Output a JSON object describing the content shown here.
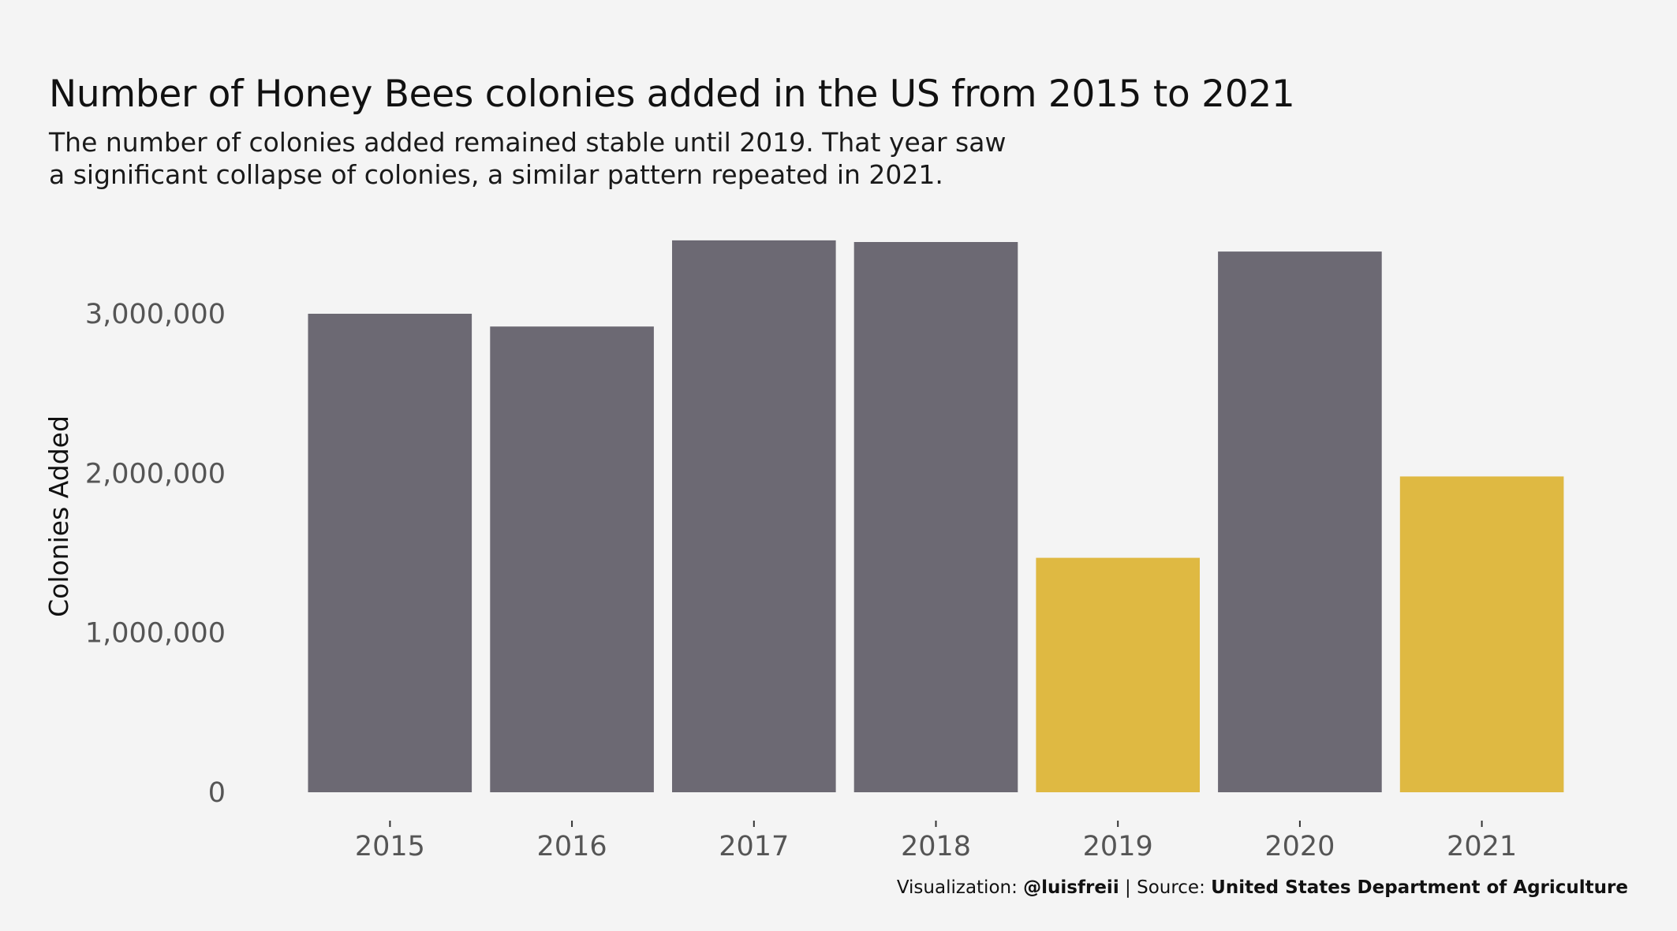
{
  "title": "Number of Honey Bees colonies added in the US from 2015 to 2021",
  "subtitle": [
    "The number of colonies added remained stable until 2019. That year saw",
    "a significant collapse of colonies, a similar pattern repeated in 2021."
  ],
  "caption": {
    "viz_prefix": "Visualization: ",
    "viz_author": "@luisfreii",
    "separator": " | Source: ",
    "source": "United States Department of Agriculture"
  },
  "colors": {
    "background": "#f4f4f4",
    "bar_default": "#6c6973",
    "bar_highlight": "#dfb942",
    "axis_text": "#555555"
  },
  "chart_data": {
    "type": "bar",
    "categories": [
      "2015",
      "2016",
      "2017",
      "2018",
      "2019",
      "2020",
      "2021"
    ],
    "values": [
      3000000,
      2920000,
      3460000,
      3450000,
      1470000,
      3390000,
      1980000
    ],
    "highlight": [
      false,
      false,
      false,
      false,
      true,
      false,
      true
    ],
    "ylabel": "Colonies Added",
    "ylim": [
      0,
      3600000
    ],
    "yticks": [
      0,
      1000000,
      2000000,
      3000000
    ],
    "ytick_labels": [
      "0",
      "1,000,000",
      "2,000,000",
      "3,000,000"
    ],
    "grid": false,
    "legend": "none"
  }
}
